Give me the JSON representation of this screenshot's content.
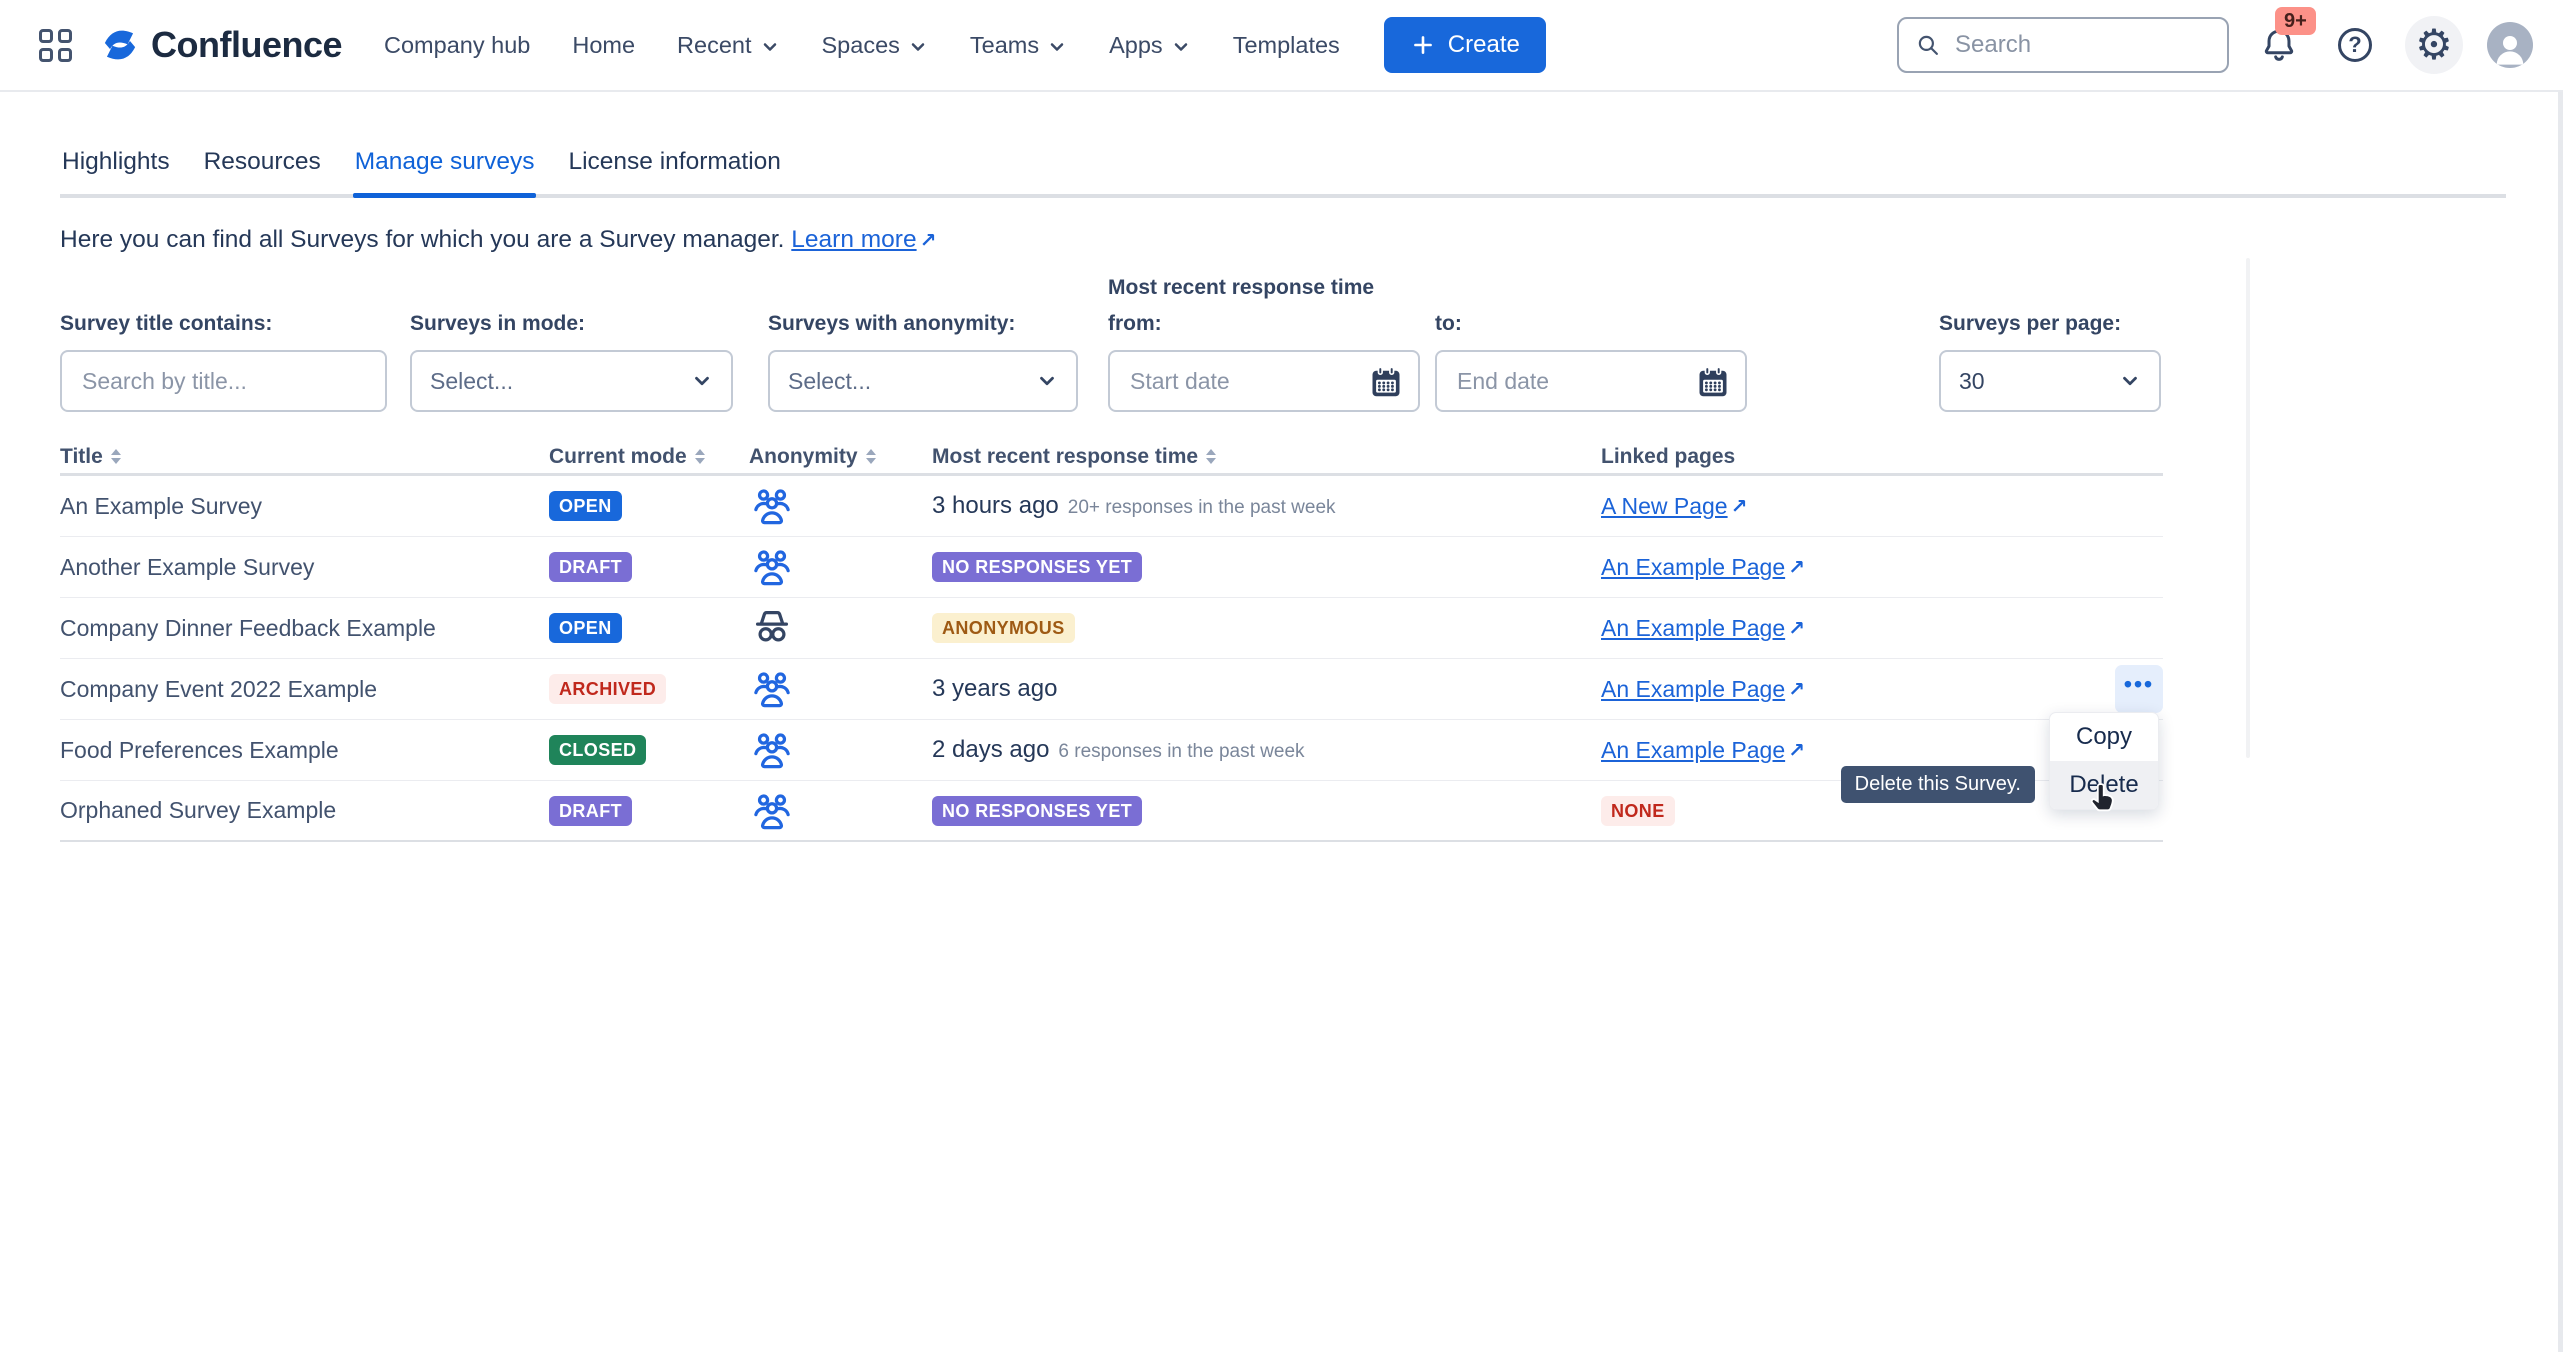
{
  "topnav": {
    "product": "Confluence",
    "items": [
      {
        "label": "Company hub",
        "dropdown": false
      },
      {
        "label": "Home",
        "dropdown": false
      },
      {
        "label": "Recent",
        "dropdown": true
      },
      {
        "label": "Spaces",
        "dropdown": true
      },
      {
        "label": "Teams",
        "dropdown": true
      },
      {
        "label": "Apps",
        "dropdown": true
      },
      {
        "label": "Templates",
        "dropdown": false
      }
    ],
    "create_label": "Create",
    "search_placeholder": "Search",
    "notifications_badge": "9+"
  },
  "tabs": [
    {
      "label": "Highlights",
      "active": false
    },
    {
      "label": "Resources",
      "active": false
    },
    {
      "label": "Manage surveys",
      "active": true
    },
    {
      "label": "License information",
      "active": false
    }
  ],
  "intro": {
    "text": "Here you can find all Surveys for which you are a Survey manager.",
    "link_label": "Learn more"
  },
  "filters": {
    "title_contains": {
      "label": "Survey title contains:",
      "placeholder": "Search by title..."
    },
    "mode": {
      "label": "Surveys in mode:",
      "value": "Select..."
    },
    "anonymity": {
      "label": "Surveys with anonymity:",
      "value": "Select..."
    },
    "response_time": {
      "group_label": "Most recent response time",
      "from_label": "from:",
      "from_placeholder": "Start date",
      "to_label": "to:",
      "to_placeholder": "End date"
    },
    "per_page": {
      "label": "Surveys per page:",
      "value": "30"
    }
  },
  "table": {
    "headers": [
      {
        "label": "Title",
        "sortable": true
      },
      {
        "label": "Current mode",
        "sortable": true
      },
      {
        "label": "Anonymity",
        "sortable": true
      },
      {
        "label": "Most recent response time",
        "sortable": true
      },
      {
        "label": "Linked pages",
        "sortable": false
      }
    ],
    "rows": [
      {
        "title": "An Example Survey",
        "mode": {
          "label": "OPEN",
          "variant": "blue-bold"
        },
        "anonymity": "group",
        "response": {
          "time": "3 hours ago",
          "detail": "20+ responses in the past week"
        },
        "linked": {
          "type": "page",
          "label": "A New Page"
        },
        "has_menu": false
      },
      {
        "title": "Another Example Survey",
        "mode": {
          "label": "DRAFT",
          "variant": "purple-bold"
        },
        "anonymity": "group",
        "response": {
          "badge": {
            "label": "NO RESPONSES YET",
            "variant": "purple-bold"
          }
        },
        "linked": {
          "type": "page",
          "label": "An Example Page"
        },
        "has_menu": false
      },
      {
        "title": "Company Dinner Feedback Example",
        "mode": {
          "label": "OPEN",
          "variant": "blue-bold"
        },
        "anonymity": "incognito",
        "response": {
          "badge": {
            "label": "ANONYMOUS",
            "variant": "yellow-subtle"
          }
        },
        "linked": {
          "type": "page",
          "label": "An Example Page"
        },
        "has_menu": false
      },
      {
        "title": "Company Event 2022 Example",
        "mode": {
          "label": "ARCHIVED",
          "variant": "red-subtle"
        },
        "anonymity": "group",
        "response": {
          "time": "3 years ago"
        },
        "linked": {
          "type": "page",
          "label": "An Example Page"
        },
        "has_menu": true
      },
      {
        "title": "Food Preferences Example",
        "mode": {
          "label": "CLOSED",
          "variant": "green-bold"
        },
        "anonymity": "group",
        "response": {
          "time": "2 days ago",
          "detail": "6 responses in the past week"
        },
        "linked": {
          "type": "page",
          "label": "An Example Page"
        },
        "has_menu": false
      },
      {
        "title": "Orphaned Survey Example",
        "mode": {
          "label": "DRAFT",
          "variant": "purple-bold"
        },
        "anonymity": "group",
        "response": {
          "badge": {
            "label": "NO RESPONSES YET",
            "variant": "purple-bold"
          }
        },
        "linked": {
          "type": "none",
          "label": "NONE",
          "variant": "red-subtle"
        },
        "has_menu": false
      }
    ]
  },
  "menu": {
    "items": [
      {
        "label": "Copy",
        "hovered": false
      },
      {
        "label": "Delete",
        "hovered": true
      }
    ]
  },
  "tooltip": {
    "text": "Delete this Survey."
  },
  "icons": {
    "external_arrow": "↗",
    "more_dots": "•••",
    "gear": "⚙"
  },
  "colors": {
    "accent": "#1868db",
    "link": "#1b63d8",
    "navy": "#344563",
    "heading": "#253858",
    "muted": "#7a869a",
    "badge_purple": "#7a6ed4",
    "badge_green": "#1f845a",
    "badge_red_bg": "#fdecea",
    "badge_red_text": "#c0281c",
    "badge_yellow_bg": "#fbf0cf",
    "badge_yellow_text": "#9e5a14",
    "tooltip_bg": "#3f5270",
    "notification_bg": "#fc9188"
  }
}
